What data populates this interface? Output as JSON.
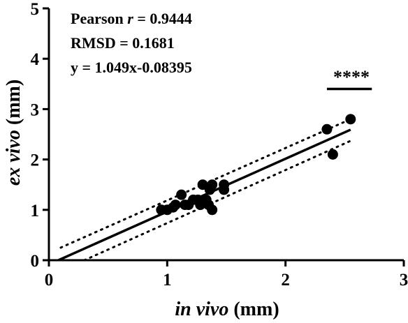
{
  "chart_data": {
    "type": "scatter",
    "xlabel": {
      "italic": "in vivo",
      "rest": " (mm)"
    },
    "ylabel": {
      "italic": "ex vivo",
      "rest": " (mm)"
    },
    "xlim": [
      0,
      3
    ],
    "ylim": [
      0,
      5
    ],
    "xticks": [
      "0",
      "1",
      "2",
      "3"
    ],
    "yticks": [
      "0",
      "1",
      "2",
      "3",
      "4",
      "5"
    ],
    "grid": false,
    "annotations": {
      "pearson": {
        "prefix": "Pearson ",
        "symbol": "r",
        "suffix": " = 0.9444"
      },
      "rmsd": "RMSD = 0.1681",
      "equation": "y = 1.049x-0.08395",
      "significance": "****"
    },
    "points": [
      {
        "x": 0.95,
        "y": 1.0
      },
      {
        "x": 1.0,
        "y": 1.0
      },
      {
        "x": 1.05,
        "y": 1.05
      },
      {
        "x": 1.07,
        "y": 1.1
      },
      {
        "x": 1.12,
        "y": 1.3
      },
      {
        "x": 1.15,
        "y": 1.1
      },
      {
        "x": 1.18,
        "y": 1.1
      },
      {
        "x": 1.22,
        "y": 1.2
      },
      {
        "x": 1.26,
        "y": 1.2
      },
      {
        "x": 1.28,
        "y": 1.1
      },
      {
        "x": 1.3,
        "y": 1.5
      },
      {
        "x": 1.33,
        "y": 1.2
      },
      {
        "x": 1.35,
        "y": 1.1
      },
      {
        "x": 1.36,
        "y": 1.4
      },
      {
        "x": 1.38,
        "y": 1.5
      },
      {
        "x": 1.38,
        "y": 1.0
      },
      {
        "x": 1.48,
        "y": 1.5
      },
      {
        "x": 1.48,
        "y": 1.4
      },
      {
        "x": 2.35,
        "y": 2.6
      },
      {
        "x": 2.4,
        "y": 2.1
      },
      {
        "x": 2.55,
        "y": 2.8
      }
    ],
    "fit": {
      "slope": 1.049,
      "intercept": -0.08395,
      "x_range": [
        0.08,
        2.55
      ]
    },
    "ci_lower": [
      {
        "x": 0.3,
        "y": 0.0
      },
      {
        "x": 2.55,
        "y": 2.37
      }
    ],
    "ci_upper": [
      {
        "x": 0.1,
        "y": 0.25
      },
      {
        "x": 2.55,
        "y": 2.8
      }
    ],
    "significance_bar_x": [
      2.35,
      2.73
    ],
    "significance_bar_y": 3.4,
    "colors": {
      "points": "#000000",
      "line": "#000000",
      "axis": "#000000"
    }
  }
}
